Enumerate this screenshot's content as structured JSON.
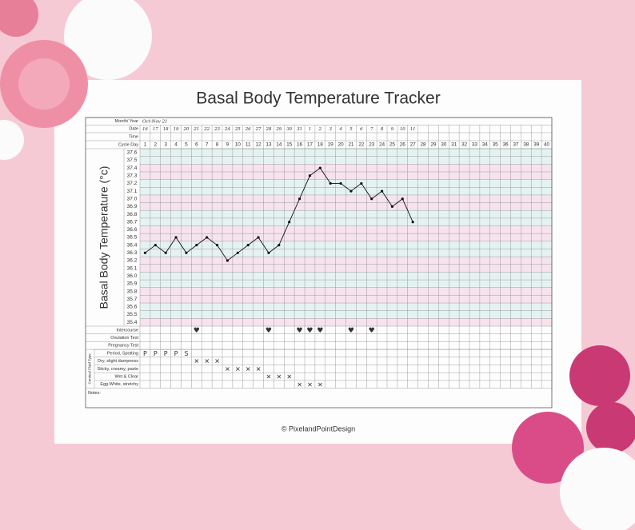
{
  "title": "Basal Body Temperature Tracker",
  "header_rows": {
    "month_year": {
      "label": "Month/ Year",
      "value": "Oct-Nov 21"
    },
    "date": {
      "label": "Date",
      "values": [
        "16",
        "17",
        "18",
        "19",
        "20",
        "21",
        "22",
        "23",
        "24",
        "25",
        "26",
        "27",
        "28",
        "29",
        "30",
        "31",
        "1",
        "2",
        "3",
        "4",
        "5",
        "6",
        "7",
        "8",
        "9",
        "10",
        "11"
      ]
    },
    "time": {
      "label": "Time"
    }
  },
  "chart_data": {
    "type": "line",
    "y_label": "Basal Body Temperature (°c)",
    "x_label": "Cycle Day",
    "categories": [
      "1",
      "2",
      "3",
      "4",
      "5",
      "6",
      "7",
      "8",
      "9",
      "10",
      "11",
      "12",
      "13",
      "14",
      "15",
      "16",
      "17",
      "18",
      "19",
      "20",
      "21",
      "22",
      "23",
      "24",
      "25",
      "26",
      "27",
      "28",
      "29",
      "30",
      "31",
      "32",
      "33",
      "34",
      "35",
      "36",
      "37",
      "38",
      "39",
      "40"
    ],
    "series": [
      {
        "name": "BBT",
        "color": "#111111",
        "values": [
          36.3,
          36.4,
          36.3,
          36.5,
          36.3,
          36.4,
          36.5,
          36.4,
          36.2,
          36.3,
          36.4,
          36.5,
          36.3,
          36.4,
          36.7,
          37.0,
          37.3,
          37.4,
          37.2,
          37.2,
          37.1,
          37.2,
          37.0,
          37.1,
          36.9,
          37.0,
          36.7,
          null,
          null,
          null,
          null,
          null,
          null,
          null,
          null,
          null,
          null,
          null,
          null,
          null
        ]
      }
    ],
    "ylim": [
      35.35,
      37.65
    ],
    "yticks": [
      37.6,
      37.5,
      37.4,
      37.3,
      37.2,
      37.1,
      {
        "value": 37,
        "label": "37.0"
      },
      36.9,
      36.8,
      36.7,
      36.6,
      36.5,
      36.4,
      36.3,
      36.2,
      36.1,
      {
        "value": 36,
        "label": "36.0"
      },
      35.9,
      35.8,
      35.7,
      35.6,
      35.5,
      35.4
    ],
    "grid": true
  },
  "tests": [
    {
      "label": "Intercourse",
      "entries": [
        {
          "day": 6,
          "mark": "♥"
        },
        {
          "day": 13,
          "mark": "♥"
        },
        {
          "day": 16,
          "mark": "♥"
        },
        {
          "day": 17,
          "mark": "♥"
        },
        {
          "day": 18,
          "mark": "♥"
        },
        {
          "day": 21,
          "mark": "♥"
        },
        {
          "day": 23,
          "mark": "♥"
        }
      ]
    },
    {
      "label": "Ovulation Test",
      "entries": []
    },
    {
      "label": "Pregnancy Test",
      "entries": []
    }
  ],
  "cervical_fluid": {
    "label": "Cervical Fluid Type",
    "rows": [
      {
        "label": "Period, Spotting",
        "entries": [
          {
            "day": 1,
            "mark": "P"
          },
          {
            "day": 2,
            "mark": "P"
          },
          {
            "day": 3,
            "mark": "P"
          },
          {
            "day": 4,
            "mark": "P"
          },
          {
            "day": 5,
            "mark": "S"
          }
        ]
      },
      {
        "label": "Dry, slight dampness",
        "entries": [
          {
            "day": 6,
            "mark": "✕"
          },
          {
            "day": 7,
            "mark": "✕"
          },
          {
            "day": 8,
            "mark": "✕"
          }
        ]
      },
      {
        "label": "Sticky, creamy, paste",
        "entries": [
          {
            "day": 9,
            "mark": "✕"
          },
          {
            "day": 10,
            "mark": "✕"
          },
          {
            "day": 11,
            "mark": "✕"
          },
          {
            "day": 12,
            "mark": "✕"
          }
        ]
      },
      {
        "label": "Wet & Clear",
        "entries": [
          {
            "day": 13,
            "mark": "✕"
          },
          {
            "day": 14,
            "mark": "✕"
          },
          {
            "day": 15,
            "mark": "✕"
          }
        ]
      },
      {
        "label": "Egg White, stretchy",
        "entries": [
          {
            "day": 16,
            "mark": "✕"
          },
          {
            "day": 17,
            "mark": "✕"
          },
          {
            "day": 18,
            "mark": "✕"
          }
        ]
      }
    ]
  },
  "notes_label": "Notes:",
  "footer": "© PixelandPointDesign"
}
